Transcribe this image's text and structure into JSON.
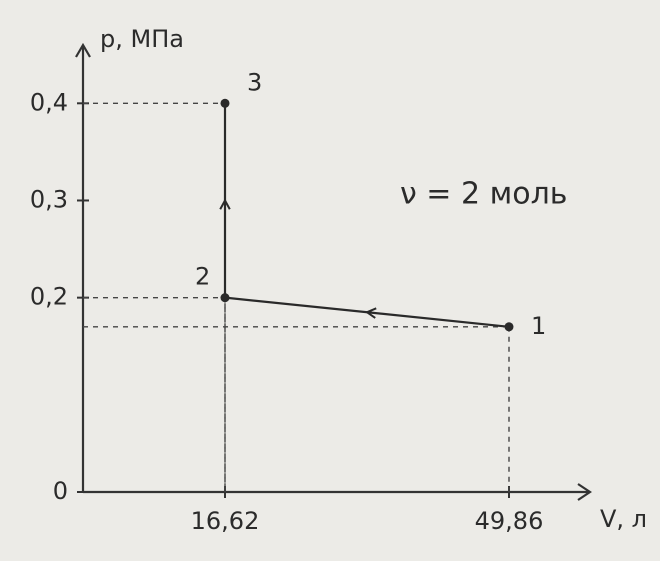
{
  "chart_data": {
    "type": "line",
    "x_label": "V, л",
    "y_label": "p, МПа",
    "annotation": "ν = 2 моль",
    "x": [
      49.86,
      16.62,
      16.62
    ],
    "series": [
      {
        "values": [
          0.17,
          0.2,
          0.4
        ],
        "color": "#2a2a2a"
      }
    ],
    "point_labels": [
      "1",
      "2",
      "3"
    ],
    "xlim": [
      0,
      57
    ],
    "ylim": [
      0,
      0.46
    ],
    "xticks": [
      {
        "value": 16.62,
        "label": "16,62"
      },
      {
        "value": 49.86,
        "label": "49,86"
      }
    ],
    "yticks": [
      0,
      {
        "value": 0.2,
        "label": "0,2"
      },
      {
        "value": 0.3,
        "label": "0,3"
      },
      {
        "value": 0.4,
        "label": "0,4"
      }
    ]
  }
}
